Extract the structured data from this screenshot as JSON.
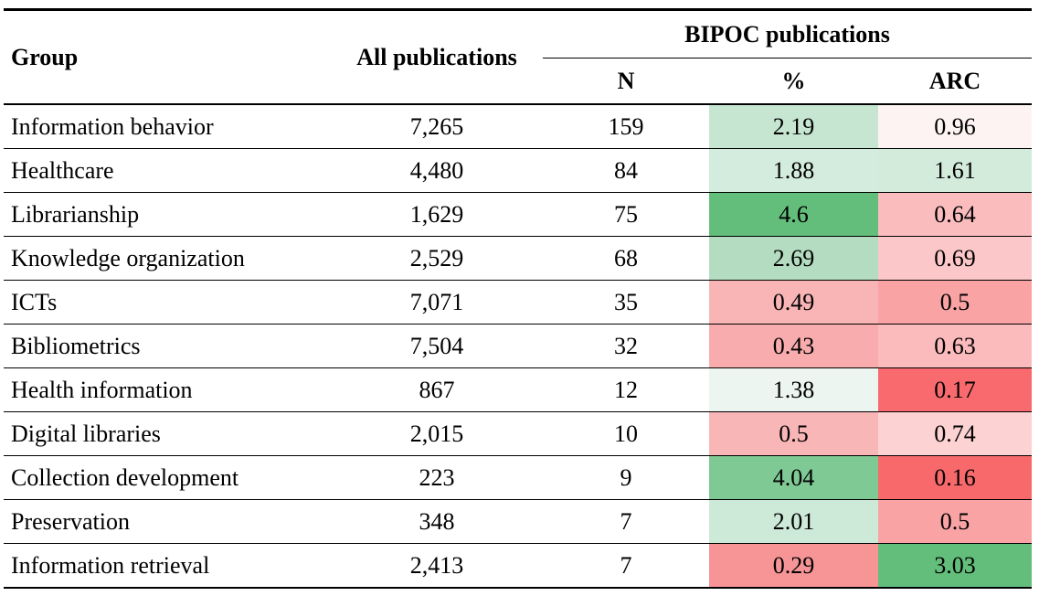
{
  "table": {
    "headers": {
      "group": "Group",
      "all_publications": "All publications",
      "bipoc_publications": "BIPOC publications",
      "n": "N",
      "percent": "%",
      "arc": "ARC"
    },
    "rows": [
      {
        "group": "Information behavior",
        "all": "7,265",
        "n": "159",
        "pct": "2.19",
        "arc": "0.96",
        "pct_color": "#c6e6d2",
        "arc_color": "#fdf3f3"
      },
      {
        "group": "Healthcare",
        "all": "4,480",
        "n": "84",
        "pct": "1.88",
        "arc": "1.61",
        "pct_color": "#d4ecdd",
        "arc_color": "#d2ebdb"
      },
      {
        "group": "Librarianship",
        "all": "1,629",
        "n": "75",
        "pct": "4.6",
        "arc": "0.64",
        "pct_color": "#63be7b",
        "arc_color": "#fbbcbe"
      },
      {
        "group": "Knowledge organization",
        "all": "2,529",
        "n": "68",
        "pct": "2.69",
        "arc": "0.69",
        "pct_color": "#b3dcc0",
        "arc_color": "#fbc7c9"
      },
      {
        "group": "ICTs",
        "all": "7,071",
        "n": "35",
        "pct": "0.49",
        "arc": "0.5",
        "pct_color": "#f9b5b6",
        "arc_color": "#f9a3a5"
      },
      {
        "group": "Bibliometrics",
        "all": "7,504",
        "n": "32",
        "pct": "0.43",
        "arc": "0.63",
        "pct_color": "#f8acad",
        "arc_color": "#fbbbbd"
      },
      {
        "group": "Health information",
        "all": "867",
        "n": "12",
        "pct": "1.38",
        "arc": "0.17",
        "pct_color": "#ecf5ef",
        "arc_color": "#f86a6d"
      },
      {
        "group": "Digital libraries",
        "all": "2,015",
        "n": "10",
        "pct": "0.5",
        "arc": "0.74",
        "pct_color": "#f9b6b7",
        "arc_color": "#fcd2d3"
      },
      {
        "group": "Collection development",
        "all": "223",
        "n": "9",
        "pct": "4.04",
        "arc": "0.16",
        "pct_color": "#7fc994",
        "arc_color": "#f8696b"
      },
      {
        "group": "Preservation",
        "all": "348",
        "n": "7",
        "pct": "2.01",
        "arc": "0.5",
        "pct_color": "#cde9d7",
        "arc_color": "#f9a3a5"
      },
      {
        "group": "Information retrieval",
        "all": "2,413",
        "n": "7",
        "pct": "0.29",
        "arc": "3.03",
        "pct_color": "#f69496",
        "arc_color": "#63be7b"
      }
    ]
  }
}
